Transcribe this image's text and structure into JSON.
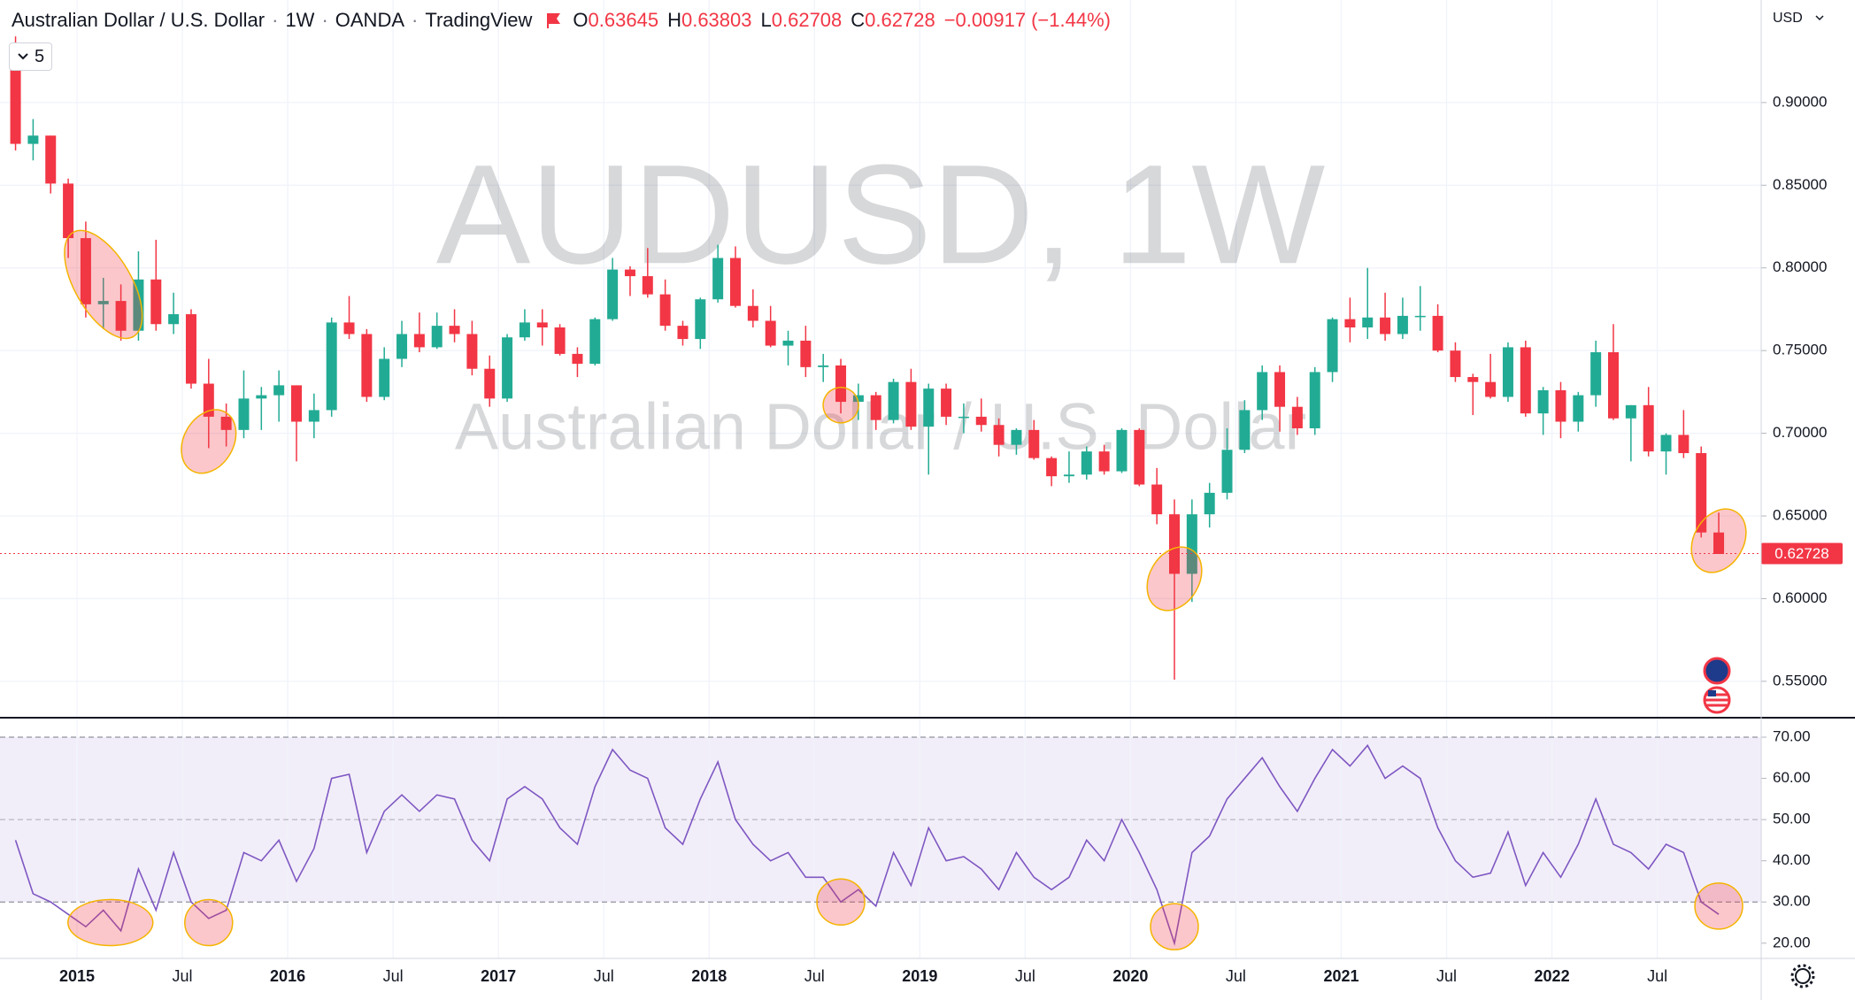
{
  "chart_data": {
    "type": "candlestick",
    "header": {
      "symbol": "Australian Dollar / U.S. Dollar",
      "interval": "1W",
      "exchange": "OANDA",
      "source": "TradingView",
      "letters": [
        "O",
        "H",
        "L",
        "C"
      ],
      "open": 0.63645,
      "high": 0.63803,
      "low": 0.62708,
      "close": 0.62728,
      "change": "−0.00917",
      "change_pct": "(−1.44%)"
    },
    "indicators_count": "5",
    "currency": "USD",
    "watermark": "AUDUSD, 1W",
    "x": [
      "2014-09",
      "2014-10",
      "2014-11",
      "2014-12",
      "2015-01",
      "2015-02",
      "2015-03",
      "2015-04",
      "2015-05",
      "2015-06",
      "2015-07",
      "2015-08",
      "2015-09",
      "2015-10",
      "2015-11",
      "2015-12",
      "2016-01",
      "2016-02",
      "2016-03",
      "2016-04",
      "2016-05",
      "2016-06",
      "2016-07",
      "2016-08",
      "2016-09",
      "2016-10",
      "2016-11",
      "2016-12",
      "2017-01",
      "2017-02",
      "2017-03",
      "2017-04",
      "2017-05",
      "2017-06",
      "2017-07",
      "2017-08",
      "2017-09",
      "2017-10",
      "2017-11",
      "2017-12",
      "2018-01",
      "2018-02",
      "2018-03",
      "2018-04",
      "2018-05",
      "2018-06",
      "2018-07",
      "2018-08",
      "2018-09",
      "2018-10",
      "2018-11",
      "2018-12",
      "2019-01",
      "2019-02",
      "2019-03",
      "2019-04",
      "2019-05",
      "2019-06",
      "2019-07",
      "2019-08",
      "2019-09",
      "2019-10",
      "2019-11",
      "2019-12",
      "2020-01",
      "2020-02",
      "2020-03",
      "2020-04",
      "2020-05",
      "2020-06",
      "2020-07",
      "2020-08",
      "2020-09",
      "2020-10",
      "2020-11",
      "2020-12",
      "2021-01",
      "2021-02",
      "2021-03",
      "2021-04",
      "2021-05",
      "2021-06",
      "2021-07",
      "2021-08",
      "2021-09",
      "2021-10",
      "2021-11",
      "2021-12",
      "2022-01",
      "2022-02",
      "2022-03",
      "2022-04",
      "2022-05",
      "2022-06",
      "2022-07",
      "2022-08",
      "2022-09",
      "2022-10"
    ],
    "open": [
      0.935,
      0.875,
      0.88,
      0.851,
      0.818,
      0.778,
      0.78,
      0.762,
      0.793,
      0.766,
      0.772,
      0.73,
      0.71,
      0.702,
      0.721,
      0.723,
      0.729,
      0.707,
      0.714,
      0.767,
      0.76,
      0.722,
      0.745,
      0.76,
      0.752,
      0.765,
      0.76,
      0.739,
      0.721,
      0.758,
      0.767,
      0.764,
      0.748,
      0.742,
      0.769,
      0.799,
      0.795,
      0.784,
      0.765,
      0.757,
      0.781,
      0.806,
      0.777,
      0.768,
      0.753,
      0.756,
      0.74,
      0.741,
      0.719,
      0.723,
      0.708,
      0.731,
      0.704,
      0.727,
      0.71,
      0.71,
      0.705,
      0.693,
      0.702,
      0.685,
      0.674,
      0.675,
      0.689,
      0.677,
      0.702,
      0.669,
      0.651,
      0.615,
      0.651,
      0.664,
      0.69,
      0.714,
      0.737,
      0.716,
      0.703,
      0.737,
      0.769,
      0.764,
      0.77,
      0.76,
      0.771,
      0.771,
      0.75,
      0.734,
      0.731,
      0.722,
      0.752,
      0.712,
      0.726,
      0.707,
      0.723,
      0.749,
      0.709,
      0.717,
      0.689,
      0.699,
      0.688,
      0.64
    ],
    "high": [
      0.94,
      0.89,
      0.88,
      0.854,
      0.828,
      0.794,
      0.79,
      0.81,
      0.817,
      0.785,
      0.775,
      0.745,
      0.718,
      0.738,
      0.728,
      0.738,
      0.729,
      0.724,
      0.77,
      0.783,
      0.763,
      0.752,
      0.768,
      0.773,
      0.773,
      0.775,
      0.768,
      0.747,
      0.76,
      0.775,
      0.775,
      0.766,
      0.752,
      0.77,
      0.806,
      0.801,
      0.812,
      0.793,
      0.768,
      0.782,
      0.814,
      0.813,
      0.787,
      0.777,
      0.762,
      0.765,
      0.748,
      0.745,
      0.73,
      0.725,
      0.733,
      0.739,
      0.73,
      0.73,
      0.718,
      0.721,
      0.709,
      0.703,
      0.708,
      0.686,
      0.689,
      0.692,
      0.693,
      0.703,
      0.703,
      0.679,
      0.66,
      0.66,
      0.67,
      0.703,
      0.72,
      0.741,
      0.741,
      0.722,
      0.74,
      0.77,
      0.782,
      0.8,
      0.785,
      0.782,
      0.789,
      0.778,
      0.755,
      0.736,
      0.748,
      0.755,
      0.756,
      0.728,
      0.731,
      0.725,
      0.756,
      0.766,
      0.717,
      0.728,
      0.7,
      0.714,
      0.692,
      0.652
    ],
    "low": [
      0.871,
      0.865,
      0.845,
      0.806,
      0.77,
      0.763,
      0.756,
      0.756,
      0.762,
      0.76,
      0.727,
      0.691,
      0.692,
      0.697,
      0.702,
      0.707,
      0.683,
      0.697,
      0.71,
      0.757,
      0.719,
      0.72,
      0.74,
      0.749,
      0.751,
      0.755,
      0.735,
      0.716,
      0.719,
      0.756,
      0.753,
      0.747,
      0.734,
      0.741,
      0.768,
      0.783,
      0.782,
      0.762,
      0.753,
      0.751,
      0.779,
      0.776,
      0.764,
      0.752,
      0.741,
      0.734,
      0.731,
      0.712,
      0.708,
      0.702,
      0.706,
      0.702,
      0.675,
      0.705,
      0.7,
      0.701,
      0.686,
      0.687,
      0.684,
      0.668,
      0.67,
      0.672,
      0.675,
      0.676,
      0.668,
      0.645,
      0.551,
      0.598,
      0.643,
      0.66,
      0.688,
      0.708,
      0.701,
      0.699,
      0.699,
      0.731,
      0.755,
      0.757,
      0.756,
      0.757,
      0.762,
      0.749,
      0.731,
      0.711,
      0.721,
      0.719,
      0.71,
      0.699,
      0.697,
      0.701,
      0.716,
      0.708,
      0.683,
      0.686,
      0.675,
      0.685,
      0.637,
      0.627
    ],
    "close": [
      0.875,
      0.88,
      0.851,
      0.818,
      0.778,
      0.78,
      0.762,
      0.793,
      0.766,
      0.772,
      0.73,
      0.71,
      0.702,
      0.721,
      0.723,
      0.729,
      0.707,
      0.714,
      0.767,
      0.76,
      0.722,
      0.745,
      0.76,
      0.752,
      0.765,
      0.76,
      0.739,
      0.721,
      0.758,
      0.767,
      0.764,
      0.748,
      0.742,
      0.769,
      0.799,
      0.795,
      0.784,
      0.765,
      0.757,
      0.781,
      0.806,
      0.777,
      0.768,
      0.753,
      0.756,
      0.74,
      0.741,
      0.719,
      0.723,
      0.708,
      0.731,
      0.704,
      0.727,
      0.71,
      0.71,
      0.705,
      0.693,
      0.702,
      0.685,
      0.674,
      0.675,
      0.689,
      0.677,
      0.702,
      0.669,
      0.651,
      0.615,
      0.651,
      0.664,
      0.69,
      0.714,
      0.737,
      0.716,
      0.703,
      0.737,
      0.769,
      0.764,
      0.77,
      0.76,
      0.771,
      0.771,
      0.75,
      0.734,
      0.731,
      0.722,
      0.752,
      0.712,
      0.726,
      0.707,
      0.723,
      0.749,
      0.709,
      0.717,
      0.689,
      0.699,
      0.688,
      0.64,
      0.627
    ],
    "up_color": "#22ab94",
    "down_color": "#f23645",
    "ylim": [
      0.528,
      0.962
    ],
    "yticks": [
      {
        "value": 0.55,
        "label": "0.55000"
      },
      {
        "value": 0.6,
        "label": "0.60000"
      },
      {
        "value": 0.65,
        "label": "0.65000"
      },
      {
        "value": 0.7,
        "label": "0.70000"
      },
      {
        "value": 0.75,
        "label": "0.75000"
      },
      {
        "value": 0.8,
        "label": "0.80000"
      },
      {
        "value": 0.85,
        "label": "0.85000"
      },
      {
        "value": 0.9,
        "label": "0.90000"
      }
    ],
    "xticks": [
      {
        "value": "2015-01",
        "label": "2015"
      },
      {
        "value": "2015-07",
        "label": "Jul"
      },
      {
        "value": "2016-01",
        "label": "2016"
      },
      {
        "value": "2016-07",
        "label": "Jul"
      },
      {
        "value": "2017-01",
        "label": "2017"
      },
      {
        "value": "2017-07",
        "label": "Jul"
      },
      {
        "value": "2018-01",
        "label": "2018"
      },
      {
        "value": "2018-07",
        "label": "Jul"
      },
      {
        "value": "2019-01",
        "label": "2019"
      },
      {
        "value": "2019-07",
        "label": "Jul"
      },
      {
        "value": "2020-01",
        "label": "2020"
      },
      {
        "value": "2020-07",
        "label": "Jul"
      },
      {
        "value": "2021-01",
        "label": "2021"
      },
      {
        "value": "2021-07",
        "label": "Jul"
      },
      {
        "value": "2022-01",
        "label": "2022"
      },
      {
        "value": "2022-07",
        "label": "Jul"
      }
    ],
    "grid": true,
    "highlights": [
      {
        "x": "2015-02",
        "y": 0.79
      },
      {
        "x": "2015-08",
        "y": 0.695
      },
      {
        "x": "2018-08",
        "y": 0.717
      },
      {
        "x": "2020-03",
        "y": 0.612
      },
      {
        "x": "2022-10",
        "y": 0.635
      }
    ],
    "rsi": {
      "color": "#7e57c2",
      "values": [
        45,
        32,
        30,
        27,
        24,
        28,
        23,
        38,
        28,
        42,
        30,
        26,
        28,
        42,
        40,
        45,
        35,
        43,
        60,
        61,
        42,
        52,
        56,
        52,
        56,
        55,
        45,
        40,
        55,
        58,
        55,
        48,
        44,
        58,
        67,
        62,
        60,
        48,
        44,
        55,
        64,
        50,
        44,
        40,
        42,
        36,
        36,
        30,
        33,
        29,
        42,
        34,
        48,
        40,
        41,
        38,
        33,
        42,
        36,
        33,
        36,
        45,
        40,
        50,
        42,
        33,
        20,
        42,
        46,
        55,
        60,
        65,
        58,
        52,
        60,
        67,
        63,
        68,
        60,
        63,
        60,
        48,
        40,
        36,
        37,
        47,
        34,
        42,
        36,
        44,
        55,
        44,
        42,
        38,
        44,
        42,
        30,
        27
      ],
      "ylim": [
        16.3,
        74.3
      ],
      "yticks": [
        {
          "value": 20,
          "label": "20.00"
        },
        {
          "value": 30,
          "label": "30.00"
        },
        {
          "value": 40,
          "label": "40.00"
        },
        {
          "value": 50,
          "label": "50.00"
        },
        {
          "value": 60,
          "label": "60.00"
        },
        {
          "value": 70,
          "label": "70.00"
        }
      ],
      "band": [
        30,
        70
      ],
      "middle": 50,
      "highlights": [
        {
          "x": "2015-02",
          "y": 25
        },
        {
          "x": "2015-08",
          "y": 25
        },
        {
          "x": "2018-08",
          "y": 30
        },
        {
          "x": "2020-03",
          "y": 24
        },
        {
          "x": "2022-10",
          "y": 29
        }
      ]
    }
  }
}
